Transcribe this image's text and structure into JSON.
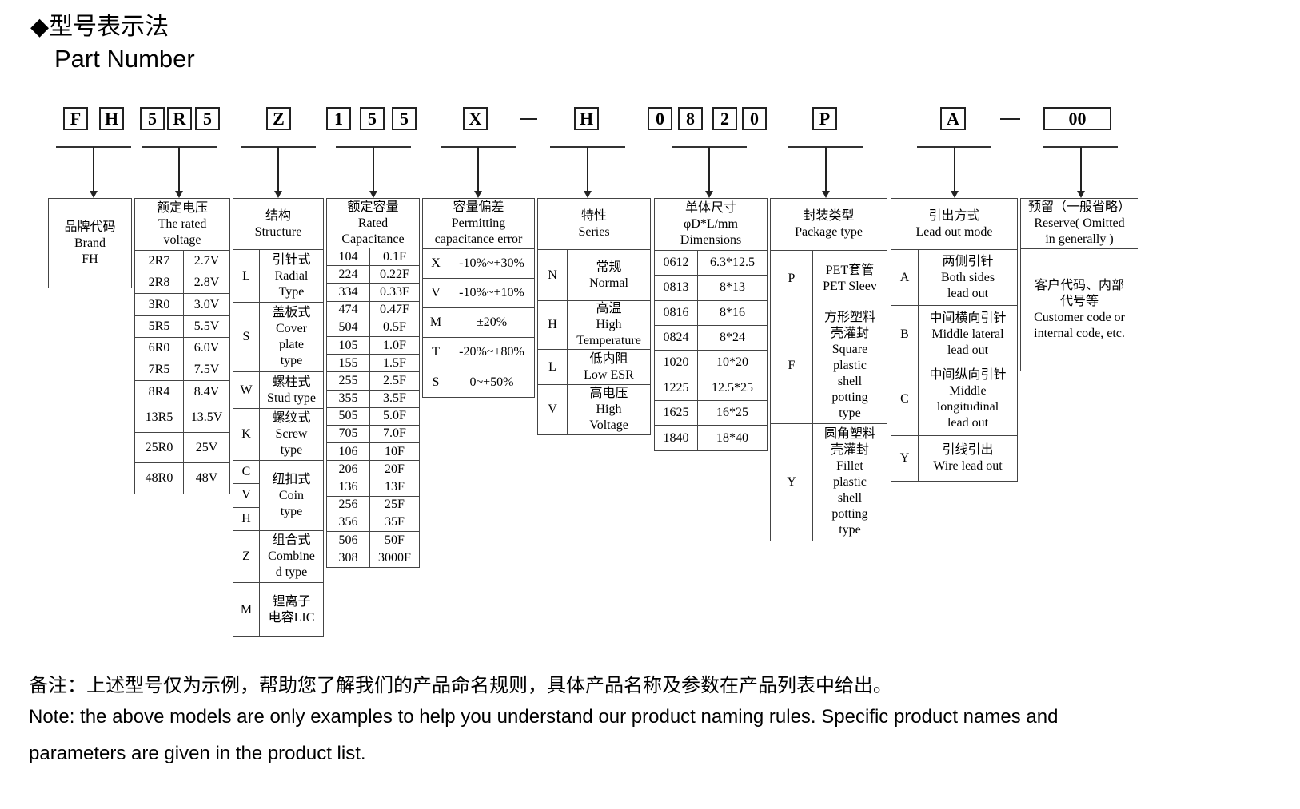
{
  "title": "◆型号表示法",
  "subtitle": "Part Number",
  "code": {
    "chars": [
      "F",
      "H",
      "5",
      "R",
      "5",
      "Z",
      "1",
      "5",
      "5",
      "X",
      "H",
      "0",
      "8",
      "2",
      "0",
      "P",
      "A",
      "00"
    ],
    "dash": "—"
  },
  "columns": [
    {
      "header": "",
      "body": "品牌代码\nBrand\nFH",
      "rows": []
    },
    {
      "header": "额定电压\nThe rated\nvoltage",
      "rows": [
        [
          "2R7",
          "2.7V"
        ],
        [
          "2R8",
          "2.8V"
        ],
        [
          "3R0",
          "3.0V"
        ],
        [
          "5R5",
          "5.5V"
        ],
        [
          "6R0",
          "6.0V"
        ],
        [
          "7R5",
          "7.5V"
        ],
        [
          "8R4",
          "8.4V"
        ],
        [
          "13R5",
          "13.5V"
        ],
        [
          "25R0",
          "25V"
        ],
        [
          "48R0",
          "48V"
        ]
      ]
    },
    {
      "header": "结构\nStructure",
      "rows": [
        [
          [
            "L"
          ],
          "引针式\nRadial\nType"
        ],
        [
          [
            "S"
          ],
          "盖板式\nCover\nplate\ntype"
        ],
        [
          [
            "W"
          ],
          "螺柱式\nStud type"
        ],
        [
          [
            "K"
          ],
          "螺纹式\nScrew\ntype"
        ],
        [
          [
            "C",
            "V",
            "H"
          ],
          "纽扣式\nCoin\ntype"
        ],
        [
          [
            "Z"
          ],
          "组合式\nCombine\nd type"
        ],
        [
          [
            "M"
          ],
          "锂离子\n电容LIC"
        ]
      ]
    },
    {
      "header": "额定容量\nRated\nCapacitance",
      "rows": [
        [
          "104",
          "0.1F"
        ],
        [
          "224",
          "0.22F"
        ],
        [
          "334",
          "0.33F"
        ],
        [
          "474",
          "0.47F"
        ],
        [
          "504",
          "0.5F"
        ],
        [
          "105",
          "1.0F"
        ],
        [
          "155",
          "1.5F"
        ],
        [
          "255",
          "2.5F"
        ],
        [
          "355",
          "3.5F"
        ],
        [
          "505",
          "5.0F"
        ],
        [
          "705",
          "7.0F"
        ],
        [
          "106",
          "10F"
        ],
        [
          "206",
          "20F"
        ],
        [
          "136",
          "13F"
        ],
        [
          "256",
          "25F"
        ],
        [
          "356",
          "35F"
        ],
        [
          "506",
          "50F"
        ],
        [
          "308",
          "3000F"
        ]
      ]
    },
    {
      "header": "容量偏差\nPermitting\ncapacitance error",
      "rows": [
        [
          "X",
          "-10%~+30%"
        ],
        [
          "V",
          "-10%~+10%"
        ],
        [
          "M",
          "±20%"
        ],
        [
          "T",
          "-20%~+80%"
        ],
        [
          "S",
          "0~+50%"
        ]
      ]
    },
    {
      "header": "特性\nSeries",
      "rows": [
        [
          "N",
          "常规\nNormal"
        ],
        [
          "H",
          "高温\nHigh\nTemperature"
        ],
        [
          "L",
          "低内阻\nLow ESR"
        ],
        [
          "V",
          "高电压\nHigh\nVoltage"
        ]
      ]
    },
    {
      "header": "单体尺寸\nφD*L/mm\nDimensions",
      "rows": [
        [
          "0612",
          "6.3*12.5"
        ],
        [
          "0813",
          "8*13"
        ],
        [
          "0816",
          "8*16"
        ],
        [
          "0824",
          "8*24"
        ],
        [
          "1020",
          "10*20"
        ],
        [
          "1225",
          "12.5*25"
        ],
        [
          "1625",
          "16*25"
        ],
        [
          "1840",
          "18*40"
        ]
      ]
    },
    {
      "header": "封装类型\nPackage type",
      "rows": [
        [
          "P",
          "PET套管\nPET Sleev"
        ],
        [
          "F",
          "方形塑料\n壳灌封\nSquare\nplastic\nshell\npotting\ntype"
        ],
        [
          "Y",
          "圆角塑料\n壳灌封\nFillet\nplastic\nshell\npotting\ntype"
        ]
      ]
    },
    {
      "header": "引出方式\nLead out mode",
      "rows": [
        [
          "A",
          "两侧引针\nBoth sides\nlead out"
        ],
        [
          "B",
          "中间横向引针\nMiddle lateral\nlead out"
        ],
        [
          "C",
          "中间纵向引针\nMiddle\nlongitudinal\nlead out"
        ],
        [
          "Y",
          "引线引出\nWire lead out"
        ]
      ]
    },
    {
      "header": "预留（一般省略）\nReserve( Omitted\nin generally )",
      "body": "客户代码、内部\n代号等\nCustomer code or\ninternal code, etc.",
      "rows": []
    }
  ],
  "notes": {
    "cn": "备注：上述型号仅为示例，帮助您了解我们的产品命名规则，具体产品名称及参数在产品列表中给出。",
    "en1": "Note: the above models are only examples to help you understand our product naming rules. Specific product names and",
    "en2": "parameters are given in the product list."
  }
}
